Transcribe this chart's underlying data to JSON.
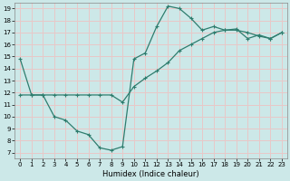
{
  "xlabel": "Humidex (Indice chaleur)",
  "bg_color": "#cce8e8",
  "line_color": "#2e7d6e",
  "grid_color": "#e8c8c8",
  "xlim": [
    -0.5,
    23.5
  ],
  "ylim": [
    6.5,
    19.5
  ],
  "xticks": [
    0,
    1,
    2,
    3,
    4,
    5,
    6,
    7,
    8,
    9,
    10,
    11,
    12,
    13,
    14,
    15,
    16,
    17,
    18,
    19,
    20,
    21,
    22,
    23
  ],
  "yticks": [
    7,
    8,
    9,
    10,
    11,
    12,
    13,
    14,
    15,
    16,
    17,
    18,
    19
  ],
  "line1_x": [
    0,
    1,
    2,
    3,
    4,
    5,
    6,
    7,
    8,
    9,
    10,
    11,
    12,
    13,
    14,
    15,
    16,
    17,
    18,
    19,
    20,
    21,
    22,
    23
  ],
  "line1_y": [
    14.8,
    11.8,
    11.8,
    10.0,
    9.7,
    8.8,
    8.5,
    7.4,
    7.2,
    7.5,
    14.8,
    15.3,
    17.5,
    19.2,
    19.0,
    18.2,
    17.2,
    17.5,
    17.2,
    17.2,
    17.0,
    16.7,
    16.5,
    17.0
  ],
  "line2_x": [
    0,
    1,
    2,
    3,
    4,
    5,
    6,
    7,
    8,
    9,
    10,
    11,
    12,
    13,
    14,
    15,
    16,
    17,
    18,
    19,
    20,
    21,
    22,
    23
  ],
  "line2_y": [
    11.8,
    11.8,
    11.8,
    11.8,
    11.8,
    11.8,
    11.8,
    11.8,
    11.8,
    11.2,
    12.5,
    13.2,
    13.8,
    14.5,
    15.5,
    16.0,
    16.5,
    17.0,
    17.2,
    17.3,
    16.5,
    16.8,
    16.5,
    17.0
  ]
}
